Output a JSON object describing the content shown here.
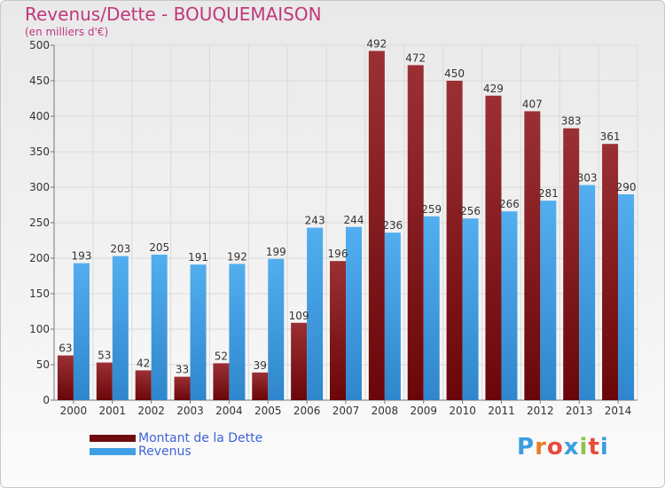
{
  "title": "Revenus/Dette - BOUQUEMAISON",
  "subtitle": "(en milliers d'€)",
  "brand": {
    "text": "Proxiti",
    "colors": [
      "#3a9de0",
      "#e67e22",
      "#e74c3c",
      "#3a9de0",
      "#8bc34a",
      "#e74c3c",
      "#3a9de0"
    ]
  },
  "chart_data": {
    "type": "bar",
    "categories": [
      "2000",
      "2001",
      "2002",
      "2003",
      "2004",
      "2005",
      "2006",
      "2007",
      "2008",
      "2009",
      "2010",
      "2011",
      "2012",
      "2013",
      "2014"
    ],
    "series": [
      {
        "name": "Montant de la Dette",
        "color": "#7a0f12",
        "values": [
          63,
          53,
          42,
          33,
          52,
          39,
          109,
          196,
          492,
          472,
          450,
          429,
          407,
          383,
          361
        ]
      },
      {
        "name": "Revenus",
        "color": "#3f9ee4",
        "values": [
          193,
          203,
          205,
          191,
          192,
          199,
          243,
          244,
          236,
          259,
          256,
          266,
          281,
          303,
          290
        ]
      }
    ],
    "ylim": [
      0,
      500
    ],
    "yticks": [
      0,
      50,
      100,
      150,
      200,
      250,
      300,
      350,
      400,
      450,
      500
    ],
    "grid": true,
    "legend": "bottom-left"
  }
}
